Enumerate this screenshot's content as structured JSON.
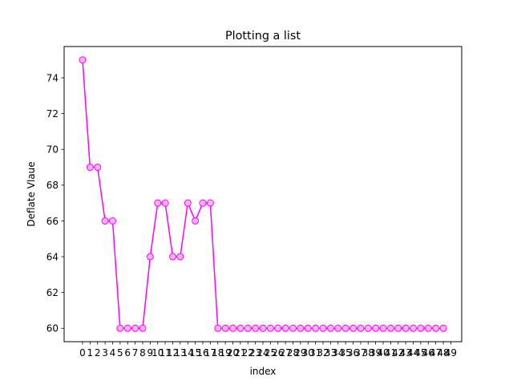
{
  "chart_data": {
    "type": "line",
    "title": "Plotting a list",
    "xlabel": "index",
    "ylabel": "Deflate Vlaue",
    "x": [
      0,
      1,
      2,
      3,
      4,
      5,
      6,
      7,
      8,
      9,
      10,
      11,
      12,
      13,
      14,
      15,
      16,
      17,
      18,
      19,
      20,
      21,
      22,
      23,
      24,
      25,
      26,
      27,
      28,
      29,
      30,
      31,
      32,
      33,
      34,
      35,
      36,
      37,
      38,
      39,
      40,
      41,
      42,
      43,
      44,
      45,
      46,
      47,
      48
    ],
    "y": [
      75,
      69,
      69,
      66,
      66,
      60,
      60,
      60,
      60,
      64,
      67,
      67,
      64,
      64,
      67,
      66,
      67,
      67,
      60,
      60,
      60,
      60,
      60,
      60,
      60,
      60,
      60,
      60,
      60,
      60,
      60,
      60,
      60,
      60,
      60,
      60,
      60,
      60,
      60,
      60,
      60,
      60,
      60,
      60,
      60,
      60,
      60,
      60,
      60
    ],
    "xticks": [
      0,
      1,
      2,
      3,
      4,
      5,
      6,
      7,
      8,
      9,
      10,
      11,
      12,
      13,
      14,
      15,
      16,
      17,
      18,
      19,
      20,
      21,
      22,
      23,
      24,
      25,
      26,
      27,
      28,
      29,
      30,
      31,
      32,
      33,
      34,
      35,
      36,
      37,
      38,
      39,
      40,
      41,
      42,
      43,
      44,
      45,
      46,
      47,
      48,
      49
    ],
    "yticks": [
      60,
      62,
      64,
      66,
      68,
      70,
      72,
      74
    ],
    "xlim": [
      -2.45,
      50.45
    ],
    "ylim": [
      59.25,
      75.75
    ],
    "grid": false,
    "line_color": "#ff00ff",
    "marker_face_color": "#ffb0ff",
    "marker_edge_color": "#ff00ff"
  }
}
